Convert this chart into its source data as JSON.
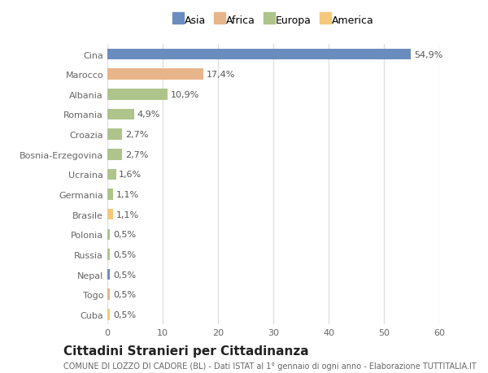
{
  "categories": [
    "Cina",
    "Marocco",
    "Albania",
    "Romania",
    "Croazia",
    "Bosnia-Erzegovina",
    "Ucraina",
    "Germania",
    "Brasile",
    "Polonia",
    "Russia",
    "Nepal",
    "Togo",
    "Cuba"
  ],
  "values": [
    54.9,
    17.4,
    10.9,
    4.9,
    2.7,
    2.7,
    1.6,
    1.1,
    1.1,
    0.5,
    0.5,
    0.5,
    0.5,
    0.5
  ],
  "labels": [
    "54,9%",
    "17,4%",
    "10,9%",
    "4,9%",
    "2,7%",
    "2,7%",
    "1,6%",
    "1,1%",
    "1,1%",
    "0,5%",
    "0,5%",
    "0,5%",
    "0,5%",
    "0,5%"
  ],
  "colors": [
    "#6b8cbf",
    "#e8b48a",
    "#aec48a",
    "#aec48a",
    "#aec48a",
    "#aec48a",
    "#aec48a",
    "#aec48a",
    "#f5c87a",
    "#aec48a",
    "#aec48a",
    "#6b8cbf",
    "#e8b48a",
    "#f5c87a"
  ],
  "legend_labels": [
    "Asia",
    "Africa",
    "Europa",
    "America"
  ],
  "legend_colors": [
    "#6b8cbf",
    "#e8b48a",
    "#aec48a",
    "#f5c87a"
  ],
  "title": "Cittadini Stranieri per Cittadinanza",
  "subtitle": "COMUNE DI LOZZO DI CADORE (BL) - Dati ISTAT al 1° gennaio di ogni anno - Elaborazione TUTTITALIA.IT",
  "xlim": [
    0,
    60
  ],
  "xticks": [
    0,
    10,
    20,
    30,
    40,
    50,
    60
  ],
  "background_color": "#ffffff",
  "plot_bg_color": "#ffffff",
  "grid_color": "#e0e0e0",
  "bar_height": 0.55,
  "title_fontsize": 11,
  "subtitle_fontsize": 7,
  "label_fontsize": 8,
  "tick_fontsize": 8,
  "legend_fontsize": 9
}
